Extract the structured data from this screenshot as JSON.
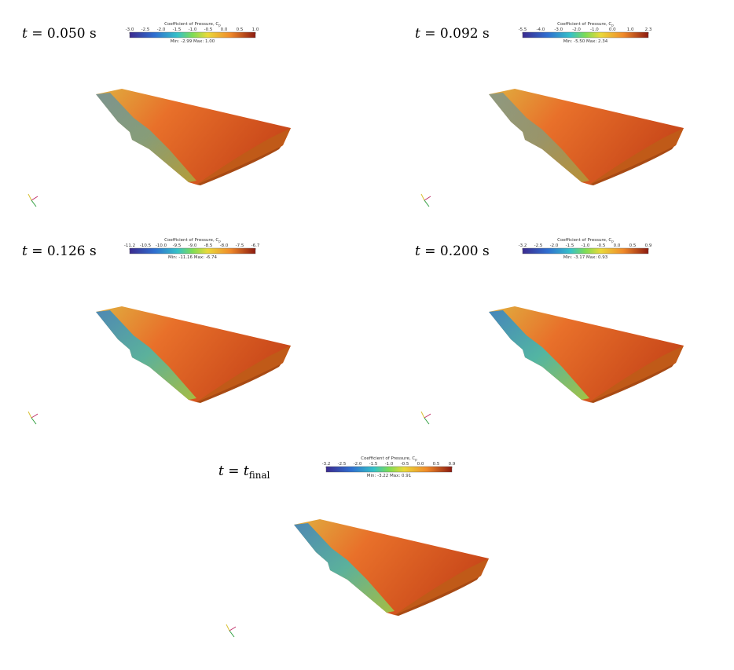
{
  "panels": [
    {
      "time_var": "t",
      "time_sign": "=",
      "time_value": "0.050 s",
      "colorbar_title": "Coefficient of Pressure, C",
      "colorbar_title_sub": "p",
      "ticks": [
        "-3.0",
        "-2.5",
        "-2.0",
        "-1.5",
        "-1.0",
        "-0.5",
        "0.0",
        "0.5",
        "1.0"
      ],
      "range_text": "Min: -2.99  Max: 1.00"
    },
    {
      "time_var": "t",
      "time_sign": "=",
      "time_value": "0.092 s",
      "colorbar_title": "Coefficient of Pressure, C",
      "colorbar_title_sub": "p",
      "ticks": [
        "-5.5",
        "-4.0",
        "-3.0",
        "-2.0",
        "-1.0",
        "0.0",
        "1.0",
        "2.3"
      ],
      "range_text": "Min: -5.50  Max: 2.34"
    },
    {
      "time_var": "t",
      "time_sign": "=",
      "time_value": "0.126 s",
      "colorbar_title": "Coefficient of Pressure, C",
      "colorbar_title_sub": "p",
      "ticks": [
        "-11.2",
        "-10.5",
        "-10.0",
        "-9.5",
        "-9.0",
        "-8.5",
        "-8.0",
        "-7.5",
        "-6.7"
      ],
      "range_text": "Min: -11.16  Max: -6.74"
    },
    {
      "time_var": "t",
      "time_sign": "=",
      "time_value": "0.200 s",
      "colorbar_title": "Coefficient of Pressure, C",
      "colorbar_title_sub": "p",
      "ticks": [
        "-3.2",
        "-2.5",
        "-2.0",
        "-1.5",
        "-1.0",
        "-0.5",
        "0.0",
        "0.5",
        "0.9"
      ],
      "range_text": "Min: -3.17  Max: 0.93"
    },
    {
      "time_var": "t",
      "time_sign": "=",
      "time_value": "t",
      "time_value_sub": "final",
      "colorbar_title": "Coefficient of Pressure, C",
      "colorbar_title_sub": "p",
      "ticks": [
        "-3.2",
        "-2.5",
        "-2.0",
        "-1.5",
        "-1.0",
        "-0.5",
        "0.0",
        "0.5",
        "0.9"
      ],
      "range_text": "Min: -3.22  Max: 0.91"
    }
  ]
}
